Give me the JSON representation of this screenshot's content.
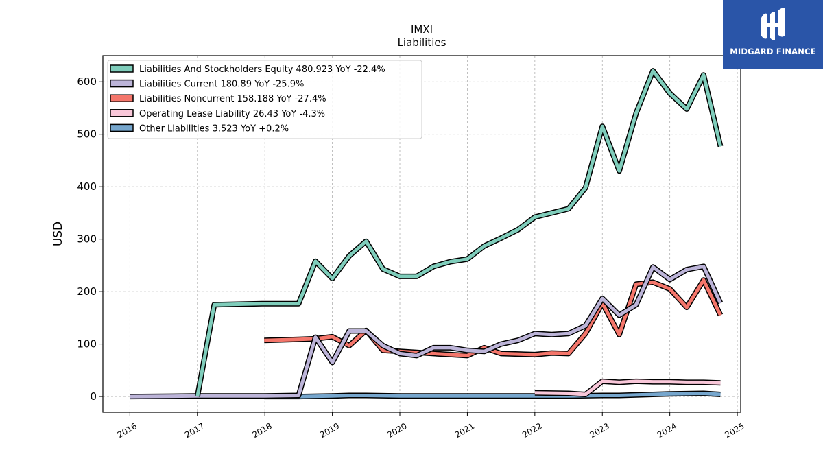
{
  "logo": {
    "text": "MIDGARD FINANCE",
    "color": "#2a55a8"
  },
  "chart_data": {
    "type": "line",
    "title": "IMXI",
    "subtitle": "Liabilities",
    "ylabel": "USD",
    "xlabel": "",
    "xlim": [
      2015.6,
      2025.05
    ],
    "ylim": [
      -30,
      650
    ],
    "yticks": [
      0,
      100,
      200,
      300,
      400,
      500,
      600
    ],
    "xticks": [
      "2016",
      "2017",
      "2018",
      "2019",
      "2020",
      "2021",
      "2022",
      "2023",
      "2024",
      "2025"
    ],
    "grid": true,
    "legend_position": "top-left",
    "series": [
      {
        "name": "Liabilities And Stockholders Equity",
        "legend": "Liabilities And Stockholders Equity  480.923 YoY -22.4%",
        "color": "#7fcdbb",
        "x": [
          2017.0,
          2017.25,
          2017.99,
          2018.5,
          2018.75,
          2019.0,
          2019.25,
          2019.5,
          2019.75,
          2020.0,
          2020.25,
          2020.5,
          2020.75,
          2021.0,
          2021.25,
          2021.5,
          2021.75,
          2022.0,
          2022.25,
          2022.5,
          2022.75,
          2023.0,
          2023.25,
          2023.5,
          2023.75,
          2024.0,
          2024.25,
          2024.5,
          2024.75
        ],
        "y": [
          0,
          175,
          177,
          177,
          258,
          225,
          268,
          296,
          243,
          229,
          229,
          248,
          257,
          262,
          287,
          302,
          318,
          342,
          350,
          358,
          398,
          515,
          430,
          540,
          621,
          578,
          548,
          613,
          477
        ]
      },
      {
        "name": "Liabilities Current",
        "legend": "Liabilities Current  180.89 YoY -25.9%",
        "color": "#bcb4d8",
        "x": [
          2016.0,
          2017.0,
          2018.0,
          2018.5,
          2018.75,
          2019.0,
          2019.25,
          2019.5,
          2019.75,
          2020.0,
          2020.25,
          2020.5,
          2020.75,
          2021.0,
          2021.25,
          2021.5,
          2021.75,
          2022.0,
          2022.25,
          2022.5,
          2022.75,
          2023.0,
          2023.25,
          2023.5,
          2023.75,
          2024.0,
          2024.25,
          2024.5,
          2024.75
        ],
        "y": [
          0,
          1,
          1,
          2,
          113,
          65,
          125,
          125,
          97,
          82,
          78,
          93,
          93,
          88,
          86,
          100,
          107,
          120,
          118,
          120,
          135,
          187,
          155,
          175,
          247,
          223,
          242,
          248,
          178
        ]
      },
      {
        "name": "Liabilities Noncurrent",
        "legend": "Liabilities Noncurrent  158.188 YoY -27.4%",
        "color": "#f4766b",
        "x": [
          2017.99,
          2018.5,
          2018.75,
          2019.0,
          2019.25,
          2019.5,
          2019.75,
          2020.0,
          2020.25,
          2020.5,
          2020.75,
          2021.0,
          2021.25,
          2021.5,
          2021.75,
          2022.0,
          2022.25,
          2022.5,
          2022.75,
          2023.0,
          2023.25,
          2023.5,
          2023.75,
          2024.0,
          2024.25,
          2024.5,
          2024.75
        ],
        "y": [
          107,
          109,
          110,
          114,
          97,
          126,
          88,
          86,
          84,
          82,
          80,
          78,
          93,
          82,
          81,
          80,
          83,
          82,
          120,
          178,
          118,
          214,
          218,
          205,
          170,
          222,
          155
        ]
      },
      {
        "name": "Operating Lease Liability",
        "legend": "Operating Lease Liability  26.43 YoY -4.3%",
        "color": "#f9c7d9",
        "x": [
          2022.0,
          2022.5,
          2022.75,
          2023.0,
          2023.25,
          2023.5,
          2023.75,
          2024.0,
          2024.25,
          2024.5,
          2024.75
        ],
        "y": [
          7,
          6,
          4,
          29,
          27,
          29,
          28,
          28,
          27,
          27,
          26
        ]
      },
      {
        "name": "Other Liabilities",
        "legend": "Other Liabilities  3.523 YoY +0.2%",
        "color": "#76a6cd",
        "x": [
          2017.99,
          2018.5,
          2019.0,
          2019.25,
          2019.5,
          2020.0,
          2020.5,
          2021.0,
          2021.5,
          2022.0,
          2022.5,
          2023.0,
          2023.25,
          2023.5,
          2023.75,
          2024.0,
          2024.5,
          2024.75
        ],
        "y": [
          0,
          0,
          1,
          2,
          2,
          1,
          1,
          1,
          1,
          1,
          1,
          2,
          2,
          3,
          4,
          5,
          6,
          4
        ]
      }
    ]
  }
}
